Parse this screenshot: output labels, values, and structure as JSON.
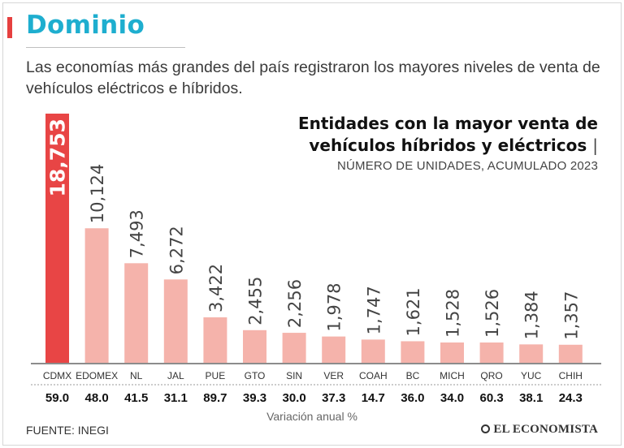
{
  "header": {
    "section": "Dominio",
    "subtitle": "Las economías más grandes del país registraron los mayores niveles de venta de vehículos eléctricos e híbridos."
  },
  "chart_data": {
    "type": "bar",
    "title_line1": "Entidades con la mayor venta de",
    "title_line2": "vehículos híbridos y eléctricos",
    "title_pipe": "|",
    "units": "NÚMERO DE UNIDADES, ACUMULADO 2023",
    "categories": [
      "CDMX",
      "EDOMEX",
      "NL",
      "JAL",
      "PUE",
      "GTO",
      "SIN",
      "VER",
      "COAH",
      "BC",
      "MICH",
      "QRO",
      "YUC",
      "CHIH"
    ],
    "values": [
      18753,
      10124,
      7493,
      6272,
      3422,
      2455,
      2256,
      1978,
      1747,
      1621,
      1528,
      1526,
      1384,
      1357
    ],
    "value_labels": [
      "18,753",
      "10,124",
      "7,493",
      "6,272",
      "3,422",
      "2,455",
      "2,256",
      "1,978",
      "1,747",
      "1,621",
      "1,528",
      "1,526",
      "1,384",
      "1,357"
    ],
    "annual_change": [
      "59.0",
      "48.0",
      "41.5",
      "31.1",
      "89.7",
      "39.3",
      "30.0",
      "37.3",
      "14.7",
      "36.0",
      "34.0",
      "60.3",
      "38.1",
      "24.3"
    ],
    "annual_change_label": "Variación anual %",
    "ylim": [
      0,
      18753
    ],
    "highlight_index": 0,
    "colors": {
      "highlight": "#e84545",
      "bar": "#f5b3ab",
      "highlight_label": "#ffffff",
      "label": "#444444"
    }
  },
  "footer": {
    "source": "FUENTE: INEGI",
    "brand": "EL ECONOMISTA"
  }
}
